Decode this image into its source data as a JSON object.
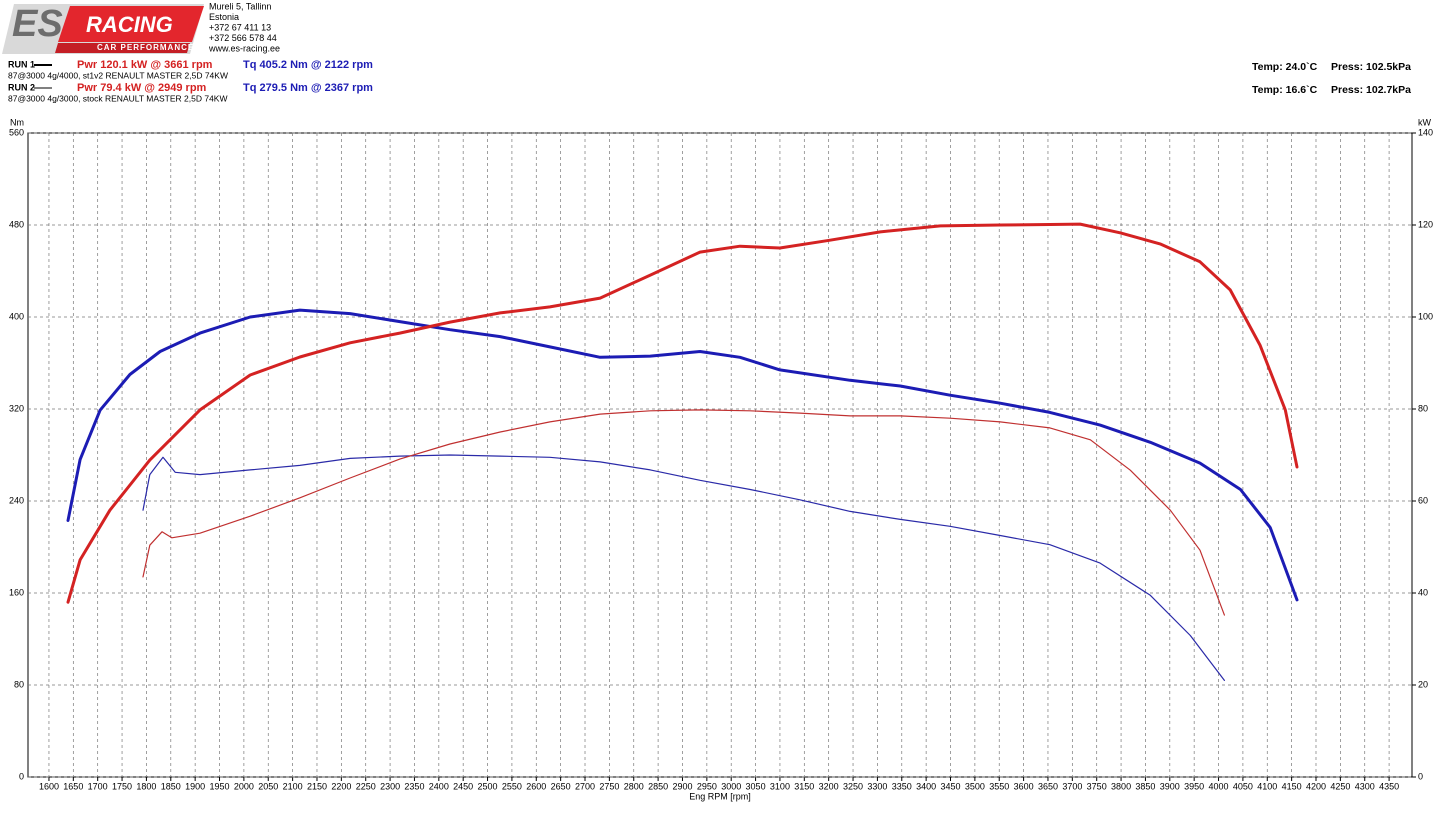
{
  "header": {
    "logo": {
      "mark": "ES",
      "name": "RACING",
      "tagline": "CAR PERFORMANCE"
    },
    "address": [
      "Mureli 5, Tallinn",
      "Estonia",
      "+372 67 411 13",
      "+372 566 578 44",
      "www.es-racing.ee"
    ]
  },
  "runs": [
    {
      "label": "RUN 1",
      "power": "Pwr  120.1 kW @ 3661 rpm",
      "torque": "Tq 405.2 Nm @ 2122 rpm",
      "description": "87@3000 4g/4000, st1v2 RENAULT MASTER 2,5D 74KW",
      "temp": "Temp: 24.0`C",
      "press": "Press: 102.5kPa"
    },
    {
      "label": "RUN 2",
      "power": "Pwr  79.4 kW @ 2949 rpm",
      "torque": "Tq 279.5 Nm @ 2367 rpm",
      "description": "87@3000 4g/3000, stock RENAULT MASTER 2,5D 74KW",
      "temp": "Temp: 16.6`C",
      "press": "Press: 102.7kPa"
    }
  ],
  "chart_data": {
    "type": "line",
    "ylabel": "Nm",
    "y2label": "kW",
    "xlabel": "Eng RPM [rpm]",
    "xlim": [
      1557,
      4397
    ],
    "ylim": [
      0,
      560
    ],
    "y2lim": [
      0,
      140
    ],
    "grid": true,
    "xticks": [
      1600,
      1650,
      1700,
      1750,
      1800,
      1850,
      1900,
      1950,
      2000,
      2050,
      2100,
      2150,
      2200,
      2250,
      2300,
      2350,
      2400,
      2450,
      2500,
      2550,
      2600,
      2650,
      2700,
      2750,
      2800,
      2850,
      2900,
      2950,
      3000,
      3050,
      3100,
      3150,
      3200,
      3250,
      3300,
      3350,
      3400,
      3450,
      3500,
      3550,
      3600,
      3650,
      3700,
      3750,
      3800,
      3850,
      3900,
      3950,
      4000,
      4050,
      4100,
      4150,
      4200,
      4250,
      4300,
      4350
    ],
    "yticks": [
      0,
      80,
      160,
      240,
      320,
      400,
      480,
      560
    ],
    "y2ticks": [
      0,
      20,
      40,
      60,
      80,
      100,
      120,
      140
    ],
    "series": [
      {
        "color": "#1c1cb4",
        "line_width": 3,
        "x": [
          1639,
          1664,
          1705,
          1766,
          1828,
          1910,
          2013,
          2115,
          2218,
          2320,
          2423,
          2526,
          2628,
          2731,
          2834,
          2936,
          3018,
          3100,
          3244,
          3347,
          3449,
          3552,
          3654,
          3757,
          3860,
          3962,
          4045,
          4106,
          4161
        ],
        "values": [
          223,
          276,
          319,
          350,
          370,
          386,
          400,
          406,
          403,
          396,
          389,
          383,
          374,
          365,
          366,
          370,
          365,
          354,
          345,
          340,
          332,
          325,
          317,
          306,
          291,
          273,
          250,
          217,
          154
        ]
      },
      {
        "color": "#d42222",
        "line_width": 3,
        "axis": "y2",
        "x": [
          1639,
          1664,
          1725,
          1807,
          1910,
          2013,
          2115,
          2218,
          2320,
          2423,
          2526,
          2628,
          2731,
          2834,
          2936,
          3018,
          3100,
          3203,
          3306,
          3429,
          3552,
          3654,
          3716,
          3798,
          3880,
          3962,
          4024,
          4085,
          4137,
          4161
        ],
        "values": [
          38.0,
          47.2,
          58.0,
          68.9,
          79.8,
          87.4,
          91.3,
          94.4,
          96.5,
          98.9,
          100.9,
          102.2,
          104.1,
          109.1,
          114.1,
          115.4,
          115.0,
          116.7,
          118.5,
          119.8,
          120.0,
          120.1,
          120.2,
          118.3,
          115.9,
          112.0,
          105.9,
          93.9,
          79.8,
          67.4
        ]
      },
      {
        "color": "#2a2aa8",
        "line_width": 1.2,
        "x": [
          1793,
          1807,
          1834,
          1859,
          1910,
          2013,
          2115,
          2218,
          2320,
          2423,
          2526,
          2628,
          2731,
          2834,
          2936,
          3039,
          3141,
          3244,
          3347,
          3449,
          3552,
          3654,
          3757,
          3860,
          3942,
          4012
        ],
        "values": [
          232,
          263,
          278,
          265,
          263,
          267,
          271,
          277,
          279,
          280,
          279,
          278,
          274,
          267,
          258,
          250,
          241,
          231,
          224,
          218,
          210,
          202,
          186,
          158,
          123,
          84
        ]
      },
      {
        "color": "#c03030",
        "line_width": 1.2,
        "axis": "y2",
        "x": [
          1793,
          1807,
          1832,
          1852,
          1910,
          2013,
          2115,
          2218,
          2320,
          2423,
          2526,
          2628,
          2731,
          2834,
          2936,
          3039,
          3141,
          3244,
          3347,
          3449,
          3552,
          3654,
          3737,
          3819,
          3901,
          3962,
          4012
        ],
        "values": [
          43.5,
          50.4,
          53.3,
          52.0,
          53.0,
          56.7,
          60.7,
          65.0,
          69.1,
          72.4,
          75.0,
          77.2,
          78.9,
          79.6,
          79.8,
          79.6,
          79.1,
          78.5,
          78.5,
          78.0,
          77.2,
          75.9,
          73.3,
          66.7,
          58.0,
          49.3,
          35.2
        ]
      }
    ]
  }
}
